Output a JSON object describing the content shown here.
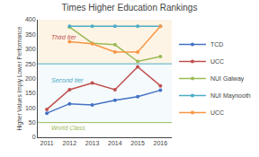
{
  "chart_data": {
    "type": "line",
    "title": "Times Higher Education Rankings",
    "y_label": "Higher Values Imply Lower Performance",
    "x": [
      2011,
      2012,
      2013,
      2014,
      2015,
      2016
    ],
    "series": [
      {
        "name": "TCD",
        "color": "#4472C4",
        "marker": "circle",
        "values": [
          82,
          114,
          110,
          126,
          138,
          160
        ]
      },
      {
        "name": "UCC",
        "color": "#C0504D",
        "marker": "circle",
        "values": [
          95,
          162,
          185,
          162,
          240,
          175
        ]
      },
      {
        "name": "NUI Galway",
        "color": "#9BBB59",
        "marker": "circle",
        "values": [
          null,
          375,
          320,
          315,
          258,
          275
        ]
      },
      {
        "name": "NUI Maynooth",
        "color": "#4BACC6",
        "marker": "circle",
        "values": [
          null,
          378,
          378,
          378,
          378,
          378
        ]
      },
      {
        "name": "UCC",
        "color": "#F79646",
        "marker": "circle",
        "values": [
          null,
          325,
          318,
          290,
          290,
          378
        ]
      }
    ],
    "xlim": [
      2010.6,
      2016.5
    ],
    "xticks": [
      2011,
      2012,
      2013,
      2014,
      2015,
      2016
    ],
    "ylim": [
      0,
      400
    ],
    "yticks": [
      0,
      50,
      100,
      150,
      200,
      250,
      300,
      350,
      400
    ],
    "reference_lines": [
      {
        "y": 250,
        "color": "#4BACC6"
      },
      {
        "y": 50,
        "color": "#9BBB59"
      }
    ],
    "bands": [
      {
        "from": 250,
        "to": 400,
        "color": "#FDEBD0"
      },
      {
        "from": 50,
        "to": 250,
        "color": "#EBF5FB"
      },
      {
        "from": 0,
        "to": 50,
        "color": "#FEFEFE"
      }
    ],
    "annotations": [
      {
        "text": "Third tier",
        "x": 2011.1,
        "y": 340,
        "color": "#C0504D"
      },
      {
        "text": "Second tier",
        "x": 2011.1,
        "y": 195,
        "color": "#4BACC6"
      },
      {
        "text": "World Class",
        "x": 2011.1,
        "y": 33,
        "color": "#9BBB59"
      }
    ],
    "grid": false,
    "legend": "right"
  }
}
